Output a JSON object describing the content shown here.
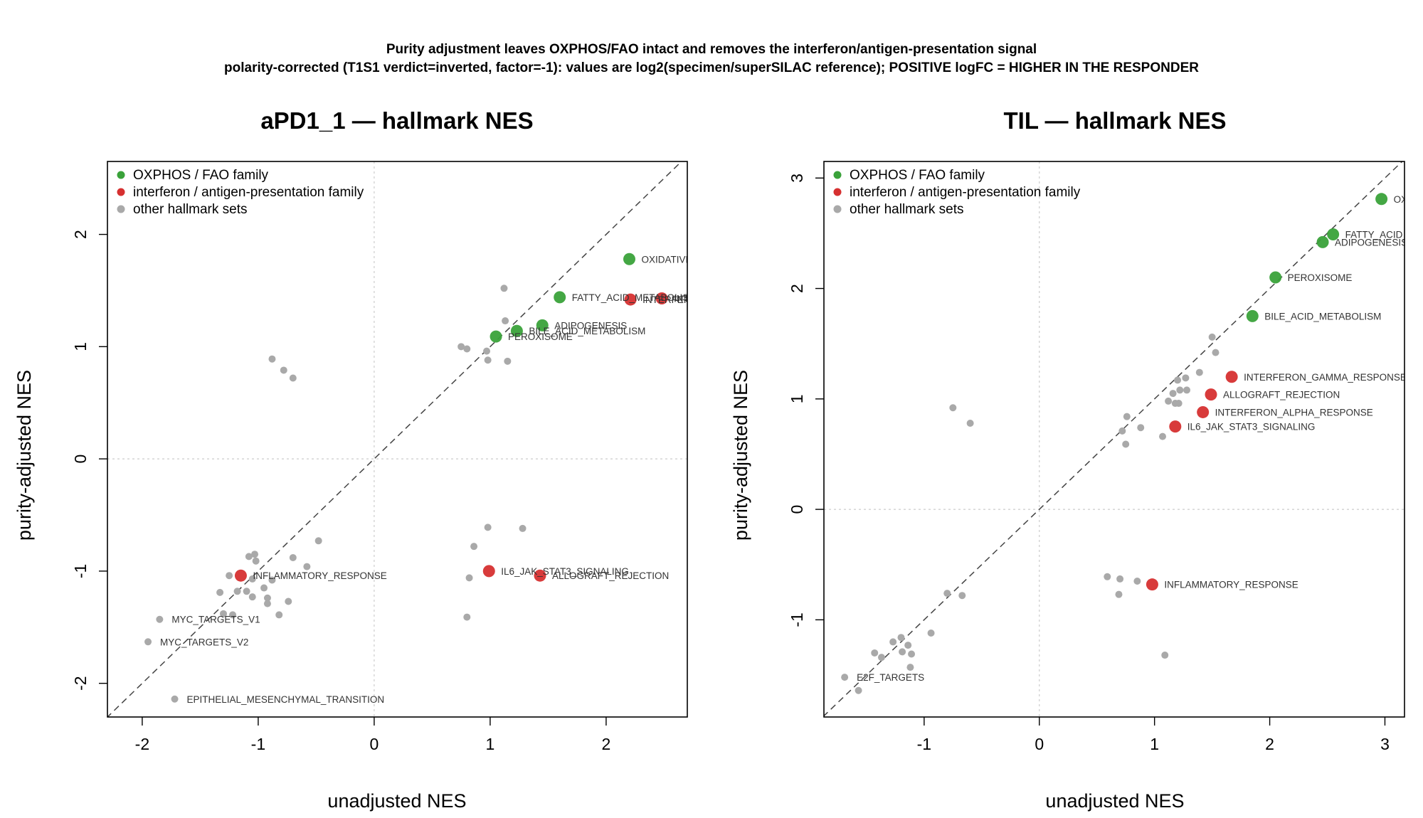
{
  "suptitle": {
    "line1": "Purity adjustment leaves OXPHOS/FAO intact and removes the interferon/antigen-presentation signal",
    "line2": "polarity-corrected (T1S1 verdict=inverted, factor=-1): values are log2(specimen/superSILAC reference); POSITIVE logFC = HIGHER IN THE RESPONDER"
  },
  "colors": {
    "oxphos": "#3aa23a",
    "interferon": "#d63030",
    "other": "#a9a9a9"
  },
  "legend": [
    {
      "key": "oxphos",
      "label": "OXPHOS / FAO family"
    },
    {
      "key": "interferon",
      "label": "interferon / antigen-presentation family"
    },
    {
      "key": "other",
      "label": "other hallmark sets"
    }
  ],
  "chart_data": [
    {
      "type": "scatter",
      "title": "aPD1_1 — hallmark NES",
      "xlabel": "unadjusted NES",
      "ylabel": "purity-adjusted NES",
      "xlim": [
        -2.3,
        2.7
      ],
      "ylim": [
        -2.3,
        2.65
      ],
      "xticks": [
        -2,
        -1,
        0,
        1,
        2
      ],
      "yticks": [
        -2,
        -1,
        0,
        1,
        2
      ],
      "legend_position": "top-left",
      "reference_line": "y = x",
      "points": [
        {
          "x": 2.2,
          "y": 1.78,
          "group": "oxphos",
          "label": "OXIDATIVE_PHOSPHORYLATION"
        },
        {
          "x": 1.6,
          "y": 1.44,
          "group": "oxphos",
          "label": "FATTY_ACID_METABOLISM"
        },
        {
          "x": 1.45,
          "y": 1.19,
          "group": "oxphos",
          "label": "ADIPOGENESIS"
        },
        {
          "x": 1.23,
          "y": 1.14,
          "group": "oxphos",
          "label": "BILE_ACID_METABOLISM"
        },
        {
          "x": 1.05,
          "y": 1.09,
          "group": "oxphos",
          "label": "PEROXISOME"
        },
        {
          "x": 2.21,
          "y": 1.42,
          "group": "interferon",
          "label": "INTERFERON_GAMMA_RESPONSE"
        },
        {
          "x": 2.48,
          "y": 1.43,
          "group": "interferon",
          "label": "INTERFERON_ALPHA_RESPONSE"
        },
        {
          "x": 0.99,
          "y": -1.0,
          "group": "interferon",
          "label": "IL6_JAK_STAT3_SIGNALING"
        },
        {
          "x": 1.43,
          "y": -1.04,
          "group": "interferon",
          "label": "ALLOGRAFT_REJECTION"
        },
        {
          "x": -1.15,
          "y": -1.04,
          "group": "interferon",
          "label": "INFLAMMATORY_RESPONSE"
        },
        {
          "x": -1.85,
          "y": -1.43,
          "group": "other",
          "label": "MYC_TARGETS_V1"
        },
        {
          "x": -1.95,
          "y": -1.63,
          "group": "other",
          "label": "MYC_TARGETS_V2"
        },
        {
          "x": -1.72,
          "y": -2.14,
          "group": "other",
          "label": "EPITHELIAL_MESENCHYMAL_TRANSITION"
        },
        {
          "x": 1.12,
          "y": 1.52,
          "group": "other"
        },
        {
          "x": 1.13,
          "y": 1.23,
          "group": "other"
        },
        {
          "x": 0.75,
          "y": 1.0,
          "group": "other"
        },
        {
          "x": 0.8,
          "y": 0.98,
          "group": "other"
        },
        {
          "x": 0.97,
          "y": 0.96,
          "group": "other"
        },
        {
          "x": 0.98,
          "y": 0.88,
          "group": "other"
        },
        {
          "x": 1.15,
          "y": 0.87,
          "group": "other"
        },
        {
          "x": -0.88,
          "y": 0.89,
          "group": "other"
        },
        {
          "x": -0.78,
          "y": 0.79,
          "group": "other"
        },
        {
          "x": -0.7,
          "y": 0.72,
          "group": "other"
        },
        {
          "x": 0.98,
          "y": -0.61,
          "group": "other"
        },
        {
          "x": 1.28,
          "y": -0.62,
          "group": "other"
        },
        {
          "x": 0.86,
          "y": -0.78,
          "group": "other"
        },
        {
          "x": 0.82,
          "y": -1.06,
          "group": "other"
        },
        {
          "x": 0.8,
          "y": -1.41,
          "group": "other"
        },
        {
          "x": -0.48,
          "y": -0.73,
          "group": "other"
        },
        {
          "x": -1.08,
          "y": -0.87,
          "group": "other"
        },
        {
          "x": -1.03,
          "y": -0.85,
          "group": "other"
        },
        {
          "x": -1.02,
          "y": -0.91,
          "group": "other"
        },
        {
          "x": -0.7,
          "y": -0.88,
          "group": "other"
        },
        {
          "x": -0.58,
          "y": -0.96,
          "group": "other"
        },
        {
          "x": -1.25,
          "y": -1.04,
          "group": "other"
        },
        {
          "x": -1.05,
          "y": -1.07,
          "group": "other"
        },
        {
          "x": -0.95,
          "y": -1.15,
          "group": "other"
        },
        {
          "x": -0.88,
          "y": -1.08,
          "group": "other"
        },
        {
          "x": -1.33,
          "y": -1.19,
          "group": "other"
        },
        {
          "x": -1.18,
          "y": -1.18,
          "group": "other"
        },
        {
          "x": -1.1,
          "y": -1.18,
          "group": "other"
        },
        {
          "x": -1.05,
          "y": -1.23,
          "group": "other"
        },
        {
          "x": -0.92,
          "y": -1.24,
          "group": "other"
        },
        {
          "x": -0.92,
          "y": -1.29,
          "group": "other"
        },
        {
          "x": -0.74,
          "y": -1.27,
          "group": "other"
        },
        {
          "x": -0.82,
          "y": -1.39,
          "group": "other"
        },
        {
          "x": -1.3,
          "y": -1.38,
          "group": "other"
        },
        {
          "x": -1.22,
          "y": -1.39,
          "group": "other"
        }
      ]
    },
    {
      "type": "scatter",
      "title": "TIL — hallmark NES",
      "xlabel": "unadjusted NES",
      "ylabel": "purity-adjusted NES",
      "xlim": [
        -1.87,
        3.17
      ],
      "ylim": [
        -1.88,
        3.15
      ],
      "xticks": [
        -1,
        0,
        1,
        2,
        3
      ],
      "yticks": [
        -1,
        0,
        1,
        2,
        3
      ],
      "legend_position": "top-left",
      "reference_line": "y = x",
      "points": [
        {
          "x": 2.97,
          "y": 2.81,
          "group": "oxphos",
          "label": "OXIDATIVE_PHOSPHORYLATION"
        },
        {
          "x": 2.55,
          "y": 2.49,
          "group": "oxphos",
          "label": "FATTY_ACID_METABOLISM"
        },
        {
          "x": 2.46,
          "y": 2.42,
          "group": "oxphos",
          "label": "ADIPOGENESIS"
        },
        {
          "x": 2.05,
          "y": 2.1,
          "group": "oxphos",
          "label": "PEROXISOME"
        },
        {
          "x": 1.85,
          "y": 1.75,
          "group": "oxphos",
          "label": "BILE_ACID_METABOLISM"
        },
        {
          "x": 1.67,
          "y": 1.2,
          "group": "interferon",
          "label": "INTERFERON_GAMMA_RESPONSE"
        },
        {
          "x": 1.49,
          "y": 1.04,
          "group": "interferon",
          "label": "ALLOGRAFT_REJECTION"
        },
        {
          "x": 1.42,
          "y": 0.88,
          "group": "interferon",
          "label": "INTERFERON_ALPHA_RESPONSE"
        },
        {
          "x": 1.18,
          "y": 0.75,
          "group": "interferon",
          "label": "IL6_JAK_STAT3_SIGNALING"
        },
        {
          "x": 0.98,
          "y": -0.68,
          "group": "interferon",
          "label": "INFLAMMATORY_RESPONSE"
        },
        {
          "x": -1.69,
          "y": -1.52,
          "group": "other",
          "label": "E2F_TARGETS"
        },
        {
          "x": 1.5,
          "y": 1.56,
          "group": "other"
        },
        {
          "x": 1.53,
          "y": 1.42,
          "group": "other"
        },
        {
          "x": 1.39,
          "y": 1.24,
          "group": "other"
        },
        {
          "x": 1.27,
          "y": 1.19,
          "group": "other"
        },
        {
          "x": 1.2,
          "y": 1.17,
          "group": "other"
        },
        {
          "x": 1.22,
          "y": 1.08,
          "group": "other"
        },
        {
          "x": 1.28,
          "y": 1.08,
          "group": "other"
        },
        {
          "x": 1.16,
          "y": 1.05,
          "group": "other"
        },
        {
          "x": 1.12,
          "y": 0.98,
          "group": "other"
        },
        {
          "x": 1.18,
          "y": 0.96,
          "group": "other"
        },
        {
          "x": 1.21,
          "y": 0.96,
          "group": "other"
        },
        {
          "x": 0.76,
          "y": 0.84,
          "group": "other"
        },
        {
          "x": 0.88,
          "y": 0.74,
          "group": "other"
        },
        {
          "x": 0.72,
          "y": 0.71,
          "group": "other"
        },
        {
          "x": 1.07,
          "y": 0.66,
          "group": "other"
        },
        {
          "x": 0.75,
          "y": 0.59,
          "group": "other"
        },
        {
          "x": -0.75,
          "y": 0.92,
          "group": "other"
        },
        {
          "x": -0.6,
          "y": 0.78,
          "group": "other"
        },
        {
          "x": 0.59,
          "y": -0.61,
          "group": "other"
        },
        {
          "x": 0.7,
          "y": -0.63,
          "group": "other"
        },
        {
          "x": 0.85,
          "y": -0.65,
          "group": "other"
        },
        {
          "x": 0.69,
          "y": -0.77,
          "group": "other"
        },
        {
          "x": 1.09,
          "y": -1.32,
          "group": "other"
        },
        {
          "x": -0.8,
          "y": -0.76,
          "group": "other"
        },
        {
          "x": -0.67,
          "y": -0.78,
          "group": "other"
        },
        {
          "x": -0.94,
          "y": -1.12,
          "group": "other"
        },
        {
          "x": -1.2,
          "y": -1.16,
          "group": "other"
        },
        {
          "x": -1.27,
          "y": -1.2,
          "group": "other"
        },
        {
          "x": -1.14,
          "y": -1.23,
          "group": "other"
        },
        {
          "x": -1.19,
          "y": -1.29,
          "group": "other"
        },
        {
          "x": -1.11,
          "y": -1.31,
          "group": "other"
        },
        {
          "x": -1.43,
          "y": -1.3,
          "group": "other"
        },
        {
          "x": -1.37,
          "y": -1.34,
          "group": "other"
        },
        {
          "x": -1.12,
          "y": -1.43,
          "group": "other"
        },
        {
          "x": -1.57,
          "y": -1.64,
          "group": "other"
        }
      ]
    }
  ]
}
